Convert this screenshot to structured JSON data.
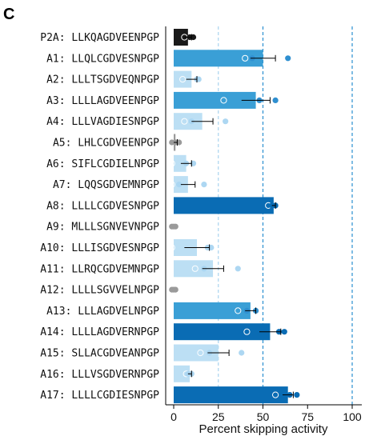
{
  "panel_label": "C",
  "colors": {
    "black": "#1a1a1a",
    "dark": "#0a6cb4",
    "mid": "#3a9fd6",
    "light": "#bcdff4",
    "gray": "#9a9a9a",
    "grid": "#2a8fd0"
  },
  "chart_data": {
    "type": "bar",
    "orientation": "horizontal",
    "title": "",
    "xlabel": "Percent skipping activity",
    "ylabel": "",
    "xlim": [
      -5,
      105
    ],
    "xticks": [
      0,
      25,
      50,
      75,
      100
    ],
    "reference_lines": [
      25,
      50,
      100
    ],
    "categories": [
      "P2A: LLKQAGDVEENPGP",
      "A1: LLQLCGDVESNPGP",
      "A2: LLLTSGDVEQNPGP",
      "A3: LLLLAGDVEENPGP",
      "A4: LLLVAGDIESNPGP",
      "A5: LHLCGDVEENPGP",
      "A6: SIFLCGDIELNPGP",
      "A7: LQQSGDVEMNPGP",
      "A8: LLLLCGDVESNPGP",
      "A9: MLLLSGNVEVNPGP",
      "A10: LLLISGDVESNPGP",
      "A11: LLRQCGDVEMNPGP",
      "A12: LLLLSGVVELNPGP",
      "A13: LLLAGDVELNPGP",
      "A14: LLLLAGDVERNPGP",
      "A15: SLLACGDVEANPGP",
      "A16: LLLVSGDVERNPGP",
      "A17: LLLLCGDIESNPGP"
    ],
    "values": [
      8,
      50,
      10,
      46,
      16,
      1,
      7,
      8,
      56,
      0,
      13,
      22,
      0,
      43,
      54,
      25,
      9,
      64
    ],
    "errors": [
      2,
      7,
      3,
      8,
      6,
      1,
      3,
      4,
      1,
      0,
      7,
      6,
      0,
      3,
      6,
      6,
      1,
      3
    ],
    "bar_colors": [
      "black",
      "mid",
      "light",
      "mid",
      "light",
      "gray",
      "light",
      "light",
      "dark",
      "gray",
      "light",
      "light",
      "gray",
      "mid",
      "dark",
      "light",
      "light",
      "dark"
    ],
    "points": [
      [
        6,
        9,
        11
      ],
      [
        40,
        44,
        64
      ],
      [
        5,
        13,
        14
      ],
      [
        28,
        48,
        57
      ],
      [
        6,
        10,
        29
      ],
      [
        -1,
        1,
        3
      ],
      [
        -1,
        7,
        11
      ],
      [
        -1,
        3,
        17
      ],
      [
        53,
        55,
        57
      ],
      [
        -1,
        0,
        1
      ],
      [
        -1,
        19,
        21
      ],
      [
        12,
        17,
        36
      ],
      [
        -1,
        0,
        1
      ],
      [
        36,
        41,
        46
      ],
      [
        41,
        59,
        62
      ],
      [
        15,
        20,
        38
      ],
      [
        7,
        8,
        10
      ],
      [
        57,
        65,
        69
      ]
    ]
  }
}
